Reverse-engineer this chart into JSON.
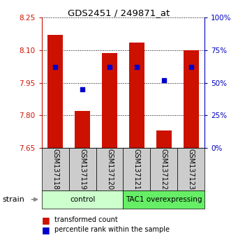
{
  "title": "GDS2451 / 249871_at",
  "samples": [
    "GSM137118",
    "GSM137119",
    "GSM137120",
    "GSM137121",
    "GSM137122",
    "GSM137123"
  ],
  "red_values": [
    8.17,
    7.82,
    8.085,
    8.135,
    7.73,
    8.1
  ],
  "blue_values_pct": [
    62,
    45,
    62,
    62,
    52,
    62
  ],
  "ylim_left": [
    7.65,
    8.25
  ],
  "ylim_right": [
    0,
    100
  ],
  "yticks_left": [
    7.65,
    7.8,
    7.95,
    8.1,
    8.25
  ],
  "yticks_right": [
    0,
    25,
    50,
    75,
    100
  ],
  "bar_bottom": 7.65,
  "bar_width": 0.55,
  "bar_color": "#cc1100",
  "dot_color": "#0000cc",
  "dot_size": 18,
  "axis_color_left": "#cc1100",
  "axis_color_right": "#0000bb",
  "sample_bg_color": "#cccccc",
  "control_color": "#ccffcc",
  "tac1_color": "#66ee66",
  "group_configs": [
    {
      "name": "control",
      "start": 0,
      "end": 2
    },
    {
      "name": "TAC1 overexpressing",
      "start": 3,
      "end": 5
    }
  ]
}
